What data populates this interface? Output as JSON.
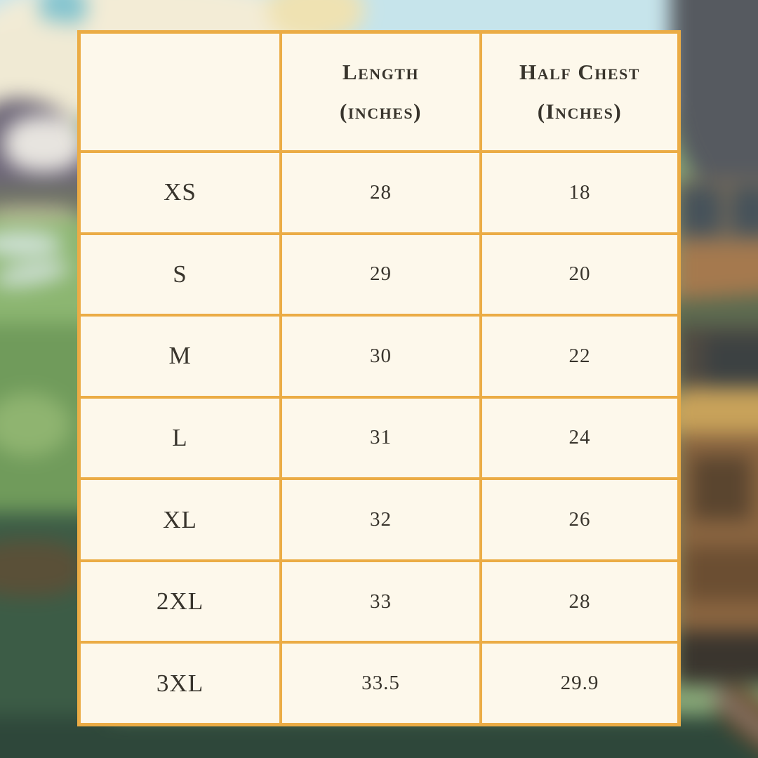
{
  "chart_data": {
    "type": "table",
    "title": "",
    "columns": [
      "",
      "Length (inches)",
      "Half Chest (Inches)"
    ],
    "rows": [
      [
        "XS",
        "28",
        "18"
      ],
      [
        "S",
        "29",
        "20"
      ],
      [
        "M",
        "30",
        "22"
      ],
      [
        "L",
        "31",
        "24"
      ],
      [
        "XL",
        "32",
        "26"
      ],
      [
        "2XL",
        "33",
        "28"
      ],
      [
        "3XL",
        "33.5",
        "29.9"
      ]
    ]
  },
  "header_display": {
    "length": {
      "line1": "Length",
      "line2": "(inches)"
    },
    "half_chest": {
      "line1": "Half Chest",
      "line2": "(Inches)"
    }
  },
  "colors": {
    "table_border": "#EBAC45",
    "cell_background": "#FDF8EB",
    "text": "#38342C",
    "sky": "#C6E4EB",
    "smoke": "#565A60",
    "field_green": "#709B5B",
    "grass_dark": "#2E473A",
    "train_brown": "#8A6540",
    "train_roof_gold": "#C8A25A"
  }
}
